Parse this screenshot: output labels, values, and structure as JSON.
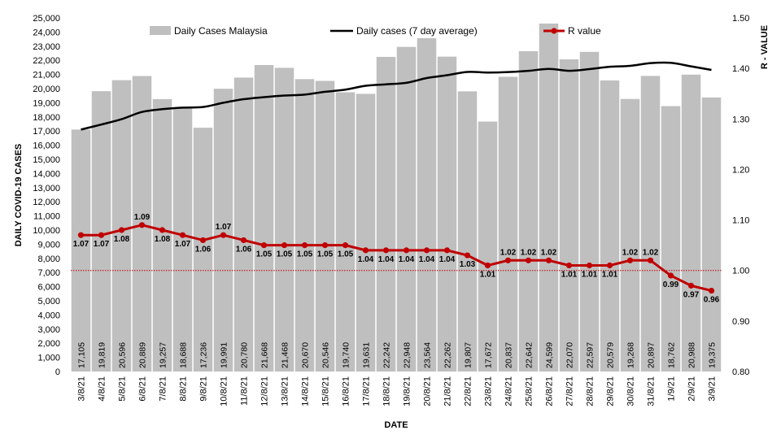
{
  "chart_data": {
    "type": "bar",
    "categories": [
      "3/8/21",
      "4/8/21",
      "5/8/21",
      "6/8/21",
      "7/8/21",
      "8/8/21",
      "9/8/21",
      "10/8/21",
      "11/8/21",
      "12/8/21",
      "13/8/21",
      "14/8/21",
      "15/8/21",
      "16/8/21",
      "17/8/21",
      "18/8/21",
      "19/8/21",
      "20/8/21",
      "21/8/21",
      "22/8/21",
      "23/8/21",
      "24/8/21",
      "25/8/21",
      "26/8/21",
      "27/8/21",
      "28/8/21",
      "29/8/21",
      "30/8/21",
      "31/8/21",
      "1/9/21",
      "2/9/21",
      "3/9/21"
    ],
    "series": [
      {
        "name": "Daily Cases Malaysia",
        "type": "bar",
        "axis": "left",
        "color": "#bfbfbf",
        "values": [
          17105,
          19819,
          20596,
          20889,
          19257,
          18688,
          17236,
          19991,
          20780,
          21668,
          21468,
          20670,
          20546,
          19740,
          19631,
          22242,
          22948,
          23564,
          22262,
          19807,
          17672,
          20837,
          22642,
          24599,
          22070,
          22597,
          20579,
          19268,
          20897,
          18762,
          20988,
          19375
        ]
      },
      {
        "name": "Daily cases (7 day average)",
        "type": "line",
        "axis": "left",
        "color": "#000000",
        "values": [
          17105,
          17462,
          17840,
          18352,
          18546,
          18657,
          18699,
          19000,
          19252,
          19396,
          19511,
          19577,
          19775,
          19930,
          20201,
          20302,
          20407,
          20747,
          20946,
          21178,
          21135,
          21169,
          21255,
          21395,
          21260,
          21380,
          21542,
          21609,
          21801,
          21823,
          21571,
          21320
        ]
      },
      {
        "name": "R value",
        "type": "line",
        "axis": "right",
        "color": "#c00000",
        "values": [
          1.07,
          1.07,
          1.08,
          1.09,
          1.08,
          1.07,
          1.06,
          1.07,
          1.06,
          1.05,
          1.05,
          1.05,
          1.05,
          1.05,
          1.04,
          1.04,
          1.04,
          1.04,
          1.04,
          1.03,
          1.01,
          1.02,
          1.02,
          1.02,
          1.01,
          1.01,
          1.01,
          1.02,
          1.02,
          0.99,
          0.97,
          0.96
        ]
      }
    ],
    "bar_labels": [
      "17,105",
      "19,819",
      "20,596",
      "20,889",
      "19,257",
      "18,688",
      "17,236",
      "19,991",
      "20,780",
      "21,668",
      "21,468",
      "20,670",
      "20,546",
      "19,740",
      "19,631",
      "22,242",
      "22,948",
      "23,564",
      "22,262",
      "19,807",
      "17,672",
      "20,837",
      "22,642",
      "24,599",
      "22,070",
      "22,597",
      "20,579",
      "19,268",
      "20,897",
      "18,762",
      "20,988",
      "19,375"
    ],
    "r_labels": [
      "1.07",
      "1.07",
      "1.08",
      "1.09",
      "1.08",
      "1.07",
      "1.06",
      "1.07",
      "1.06",
      "1.05",
      "1.05",
      "1.05",
      "1.05",
      "1.05",
      "1.04",
      "1.04",
      "1.04",
      "1.04",
      "1.04",
      "1.03",
      "1.01",
      "1.02",
      "1.02",
      "1.02",
      "1.01",
      "1.01",
      "1.01",
      "1.02",
      "1.02",
      "0.99",
      "0.97",
      "0.96"
    ],
    "reference_line": {
      "axis": "right",
      "value": 1.0,
      "color": "#c00000",
      "style": "dotted"
    },
    "xlabel": "DATE",
    "ylabel": "DAILY COVID-19 CASES",
    "y2label": "R - VALUE",
    "ylim": [
      0,
      25000
    ],
    "ystep": 1000,
    "y2lim": [
      0.8,
      1.5
    ],
    "y2step": 0.1,
    "grid": false,
    "legend_position": "top"
  }
}
